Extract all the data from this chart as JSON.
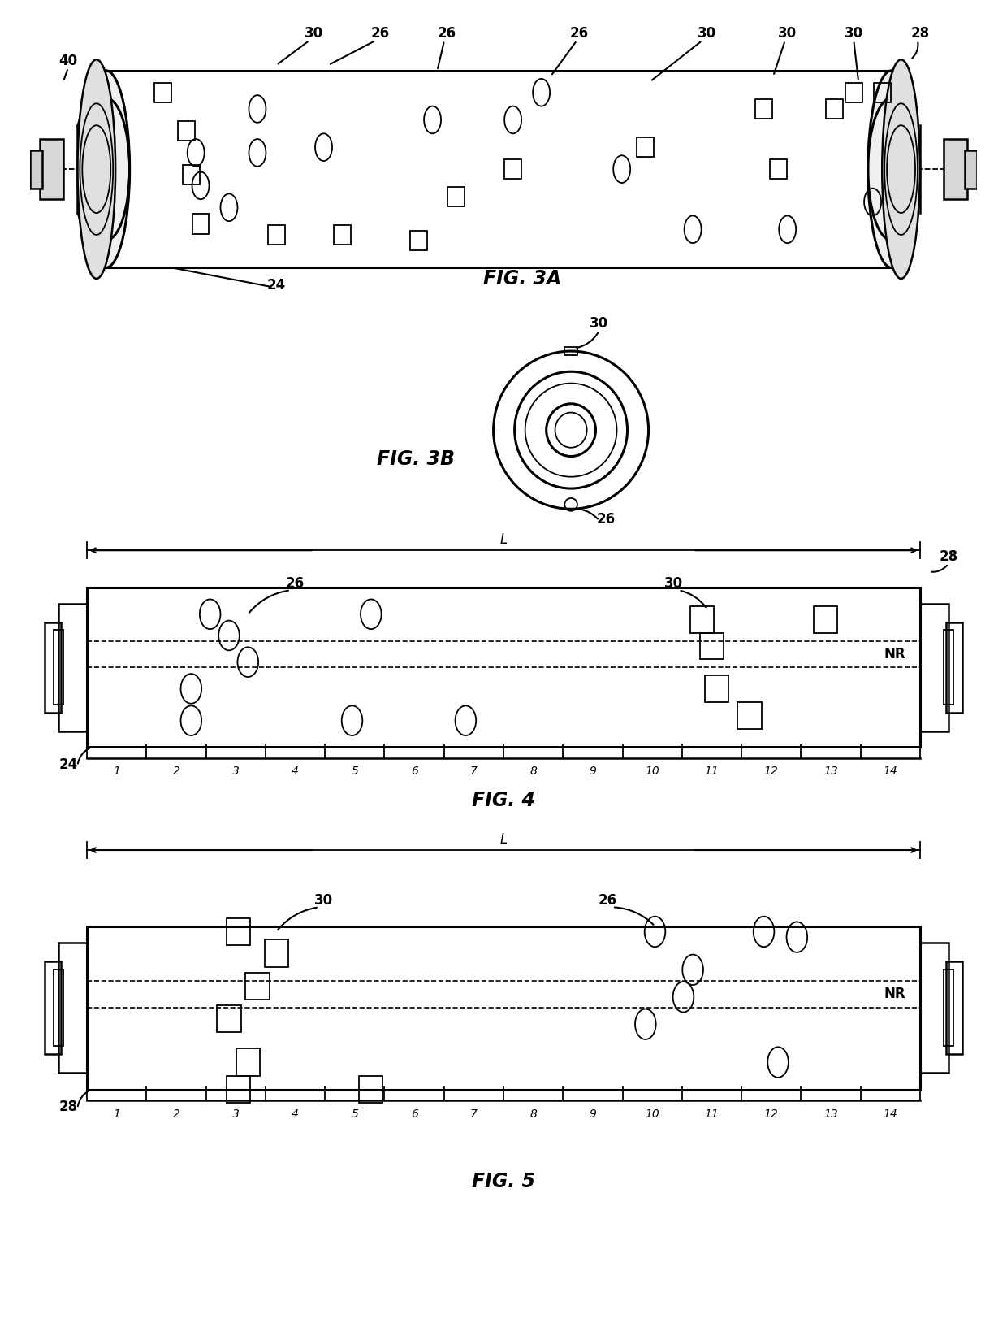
{
  "bg_color": "#ffffff",
  "fig_width": 12.4,
  "fig_height": 16.44,
  "label_fontsize": 17,
  "ann_fontsize": 12,
  "num_fontsize": 10,
  "tick_labels": [
    "1",
    "2",
    "3",
    "4",
    "5",
    "6",
    "7",
    "8",
    "9",
    "10",
    "11",
    "12",
    "13",
    "14"
  ]
}
